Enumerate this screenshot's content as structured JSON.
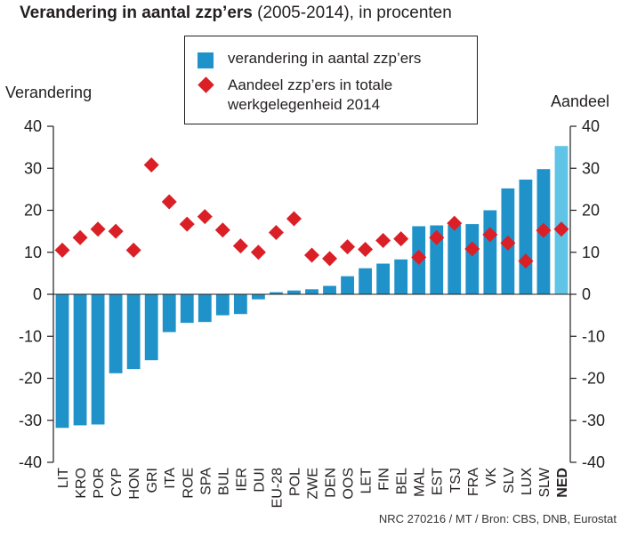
{
  "title": {
    "bold": "Verandering in aantal zzp’ers",
    "rest": " (2005-2014),  in procenten"
  },
  "source": "NRC 270216 / MT / Bron: CBS, DNB, Eurostat",
  "colors": {
    "bar": "#1f93c9",
    "highlight_bar": "#5fc4e6",
    "marker": "#da1f26",
    "axis": "#231f20"
  },
  "chart_data": {
    "type": "bar",
    "title": "Verandering in aantal zzp’ers (2005-2014), in procenten",
    "ylabel_left": "Verandering",
    "ylabel_right": "Aandeel",
    "ylim": [
      -40,
      40
    ],
    "yticks": [
      40,
      30,
      20,
      10,
      0,
      -10,
      -20,
      -30,
      -40
    ],
    "grid": false,
    "legend_placement": "top-center",
    "highlight_category": "NED",
    "categories": [
      "LIT",
      "KRO",
      "POR",
      "CYP",
      "HON",
      "GRI",
      "ITA",
      "ROE",
      "SPA",
      "BUL",
      "IER",
      "DUI",
      "EU-28",
      "POL",
      "ZWE",
      "DEN",
      "OOS",
      "LET",
      "FIN",
      "BEL",
      "MAL",
      "EST",
      "TSJ",
      "FRA",
      "VK",
      "SLV",
      "LUX",
      "SLW",
      "NED"
    ],
    "series": [
      {
        "name": "verandering in aantal zzp’ers",
        "kind": "bar",
        "values": [
          -31.8,
          -31.2,
          -31.0,
          -18.8,
          -17.8,
          -15.7,
          -9.0,
          -6.8,
          -6.6,
          -5.0,
          -4.7,
          -1.2,
          0.5,
          0.9,
          1.2,
          2.0,
          4.3,
          6.2,
          7.3,
          8.3,
          16.2,
          16.4,
          16.5,
          16.7,
          20.0,
          25.2,
          27.3,
          29.8,
          35.3
        ]
      },
      {
        "name": "Aandeel zzp’ers in totale werkgelegenheid 2014",
        "kind": "marker",
        "values": [
          10.5,
          13.5,
          15.5,
          15.0,
          10.5,
          30.8,
          22.0,
          16.7,
          18.5,
          15.3,
          11.5,
          10.0,
          14.7,
          18.0,
          9.3,
          8.5,
          11.3,
          10.7,
          12.8,
          13.2,
          8.8,
          13.5,
          16.9,
          10.8,
          14.2,
          12.2,
          7.9,
          15.2,
          15.5
        ]
      }
    ]
  }
}
